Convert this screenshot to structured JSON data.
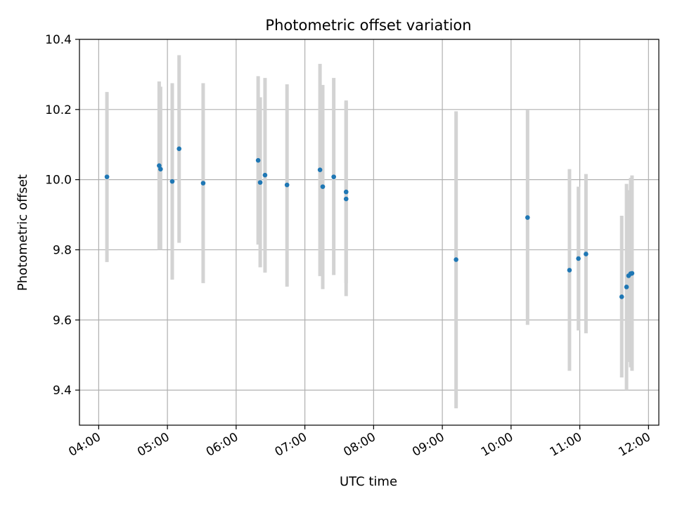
{
  "chart_data": {
    "type": "scatter",
    "title": "Photometric offset variation",
    "xlabel": "UTC time",
    "ylabel": "Photometric offset",
    "x_unit": "hours (UTC)",
    "xlim": [
      3.72,
      12.15
    ],
    "ylim": [
      9.3,
      10.4
    ],
    "grid": true,
    "x_ticks": [
      {
        "value": 4,
        "label": "04:00"
      },
      {
        "value": 5,
        "label": "05:00"
      },
      {
        "value": 6,
        "label": "06:00"
      },
      {
        "value": 7,
        "label": "07:00"
      },
      {
        "value": 8,
        "label": "08:00"
      },
      {
        "value": 9,
        "label": "09:00"
      },
      {
        "value": 10,
        "label": "10:00"
      },
      {
        "value": 11,
        "label": "11:00"
      },
      {
        "value": 12,
        "label": "12:00"
      }
    ],
    "y_ticks": [
      {
        "value": 9.4,
        "label": "9.4"
      },
      {
        "value": 9.6,
        "label": "9.6"
      },
      {
        "value": 9.8,
        "label": "9.8"
      },
      {
        "value": 10.0,
        "label": "10.0"
      },
      {
        "value": 10.2,
        "label": "10.2"
      },
      {
        "value": 10.4,
        "label": "10.4"
      }
    ],
    "point_color": "#1f77b4",
    "errorbar_color": "#d3d3d3",
    "points": [
      {
        "x": 4.12,
        "y": 10.008,
        "ylow": 9.765,
        "yhigh": 10.25
      },
      {
        "x": 4.88,
        "y": 10.04,
        "ylow": 9.8,
        "yhigh": 10.28
      },
      {
        "x": 4.9,
        "y": 10.03,
        "ylow": 9.8,
        "yhigh": 10.265
      },
      {
        "x": 5.07,
        "y": 9.995,
        "ylow": 9.715,
        "yhigh": 10.275
      },
      {
        "x": 5.17,
        "y": 10.088,
        "ylow": 9.82,
        "yhigh": 10.355
      },
      {
        "x": 5.52,
        "y": 9.99,
        "ylow": 9.705,
        "yhigh": 10.275
      },
      {
        "x": 6.32,
        "y": 10.055,
        "ylow": 9.815,
        "yhigh": 10.295
      },
      {
        "x": 6.35,
        "y": 9.992,
        "ylow": 9.75,
        "yhigh": 10.235
      },
      {
        "x": 6.42,
        "y": 10.013,
        "ylow": 9.735,
        "yhigh": 10.29
      },
      {
        "x": 6.74,
        "y": 9.985,
        "ylow": 9.695,
        "yhigh": 10.272
      },
      {
        "x": 7.22,
        "y": 10.028,
        "ylow": 9.725,
        "yhigh": 10.33
      },
      {
        "x": 7.26,
        "y": 9.98,
        "ylow": 9.688,
        "yhigh": 10.27
      },
      {
        "x": 7.42,
        "y": 10.008,
        "ylow": 9.728,
        "yhigh": 10.29
      },
      {
        "x": 7.6,
        "y": 9.965,
        "ylow": 9.705,
        "yhigh": 10.226
      },
      {
        "x": 7.6,
        "y": 9.945,
        "ylow": 9.668,
        "yhigh": 10.222
      },
      {
        "x": 9.2,
        "y": 9.772,
        "ylow": 9.348,
        "yhigh": 10.195
      },
      {
        "x": 10.24,
        "y": 9.892,
        "ylow": 9.586,
        "yhigh": 10.2
      },
      {
        "x": 10.85,
        "y": 9.742,
        "ylow": 9.455,
        "yhigh": 10.03
      },
      {
        "x": 10.98,
        "y": 9.775,
        "ylow": 9.57,
        "yhigh": 9.98
      },
      {
        "x": 11.09,
        "y": 9.788,
        "ylow": 9.562,
        "yhigh": 10.016
      },
      {
        "x": 11.61,
        "y": 9.666,
        "ylow": 9.436,
        "yhigh": 9.897
      },
      {
        "x": 11.68,
        "y": 9.694,
        "ylow": 9.4,
        "yhigh": 9.988
      },
      {
        "x": 11.71,
        "y": 9.726,
        "ylow": 9.48,
        "yhigh": 9.97
      },
      {
        "x": 11.74,
        "y": 9.732,
        "ylow": 9.465,
        "yhigh": 10.005
      },
      {
        "x": 11.76,
        "y": 9.733,
        "ylow": 9.455,
        "yhigh": 10.012
      }
    ]
  }
}
